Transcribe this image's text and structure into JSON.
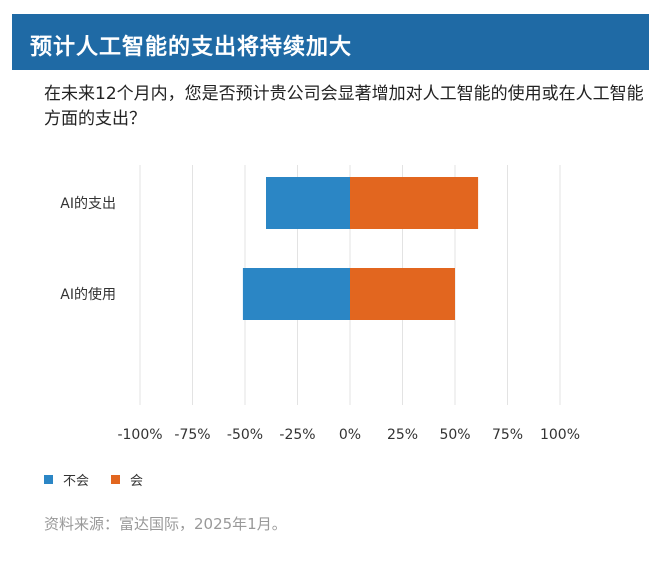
{
  "header": {
    "title": "预计人工智能的支出将持续加大"
  },
  "question": "在未来12个月内，您是否预计贵公司会显著增加对人工智能的使用或在人工智能方面的支出？",
  "chart_data": {
    "type": "bar",
    "orientation": "horizontal",
    "stacked": "diverging",
    "categories": [
      "AI的支出",
      "AI的使用"
    ],
    "series": [
      {
        "name": "不会",
        "color": "#2b86c5",
        "values": [
          -40,
          -51
        ]
      },
      {
        "name": "会",
        "color": "#e2661f",
        "values": [
          61,
          50
        ]
      }
    ],
    "xlim": [
      -100,
      100
    ],
    "xticks": [
      -100,
      -75,
      -50,
      -25,
      0,
      25,
      50,
      75,
      100
    ],
    "xtick_labels": [
      "-100%",
      "-75%",
      "-50%",
      "-25%",
      "0%",
      "25%",
      "50%",
      "75%",
      "100%"
    ],
    "grid": "vertical",
    "legend_position": "bottom-left"
  },
  "legend": [
    {
      "label": "不会",
      "color": "#2b86c5"
    },
    {
      "label": "会",
      "color": "#e2661f"
    }
  ],
  "source": "资料来源：富达国际，2025年1月。"
}
